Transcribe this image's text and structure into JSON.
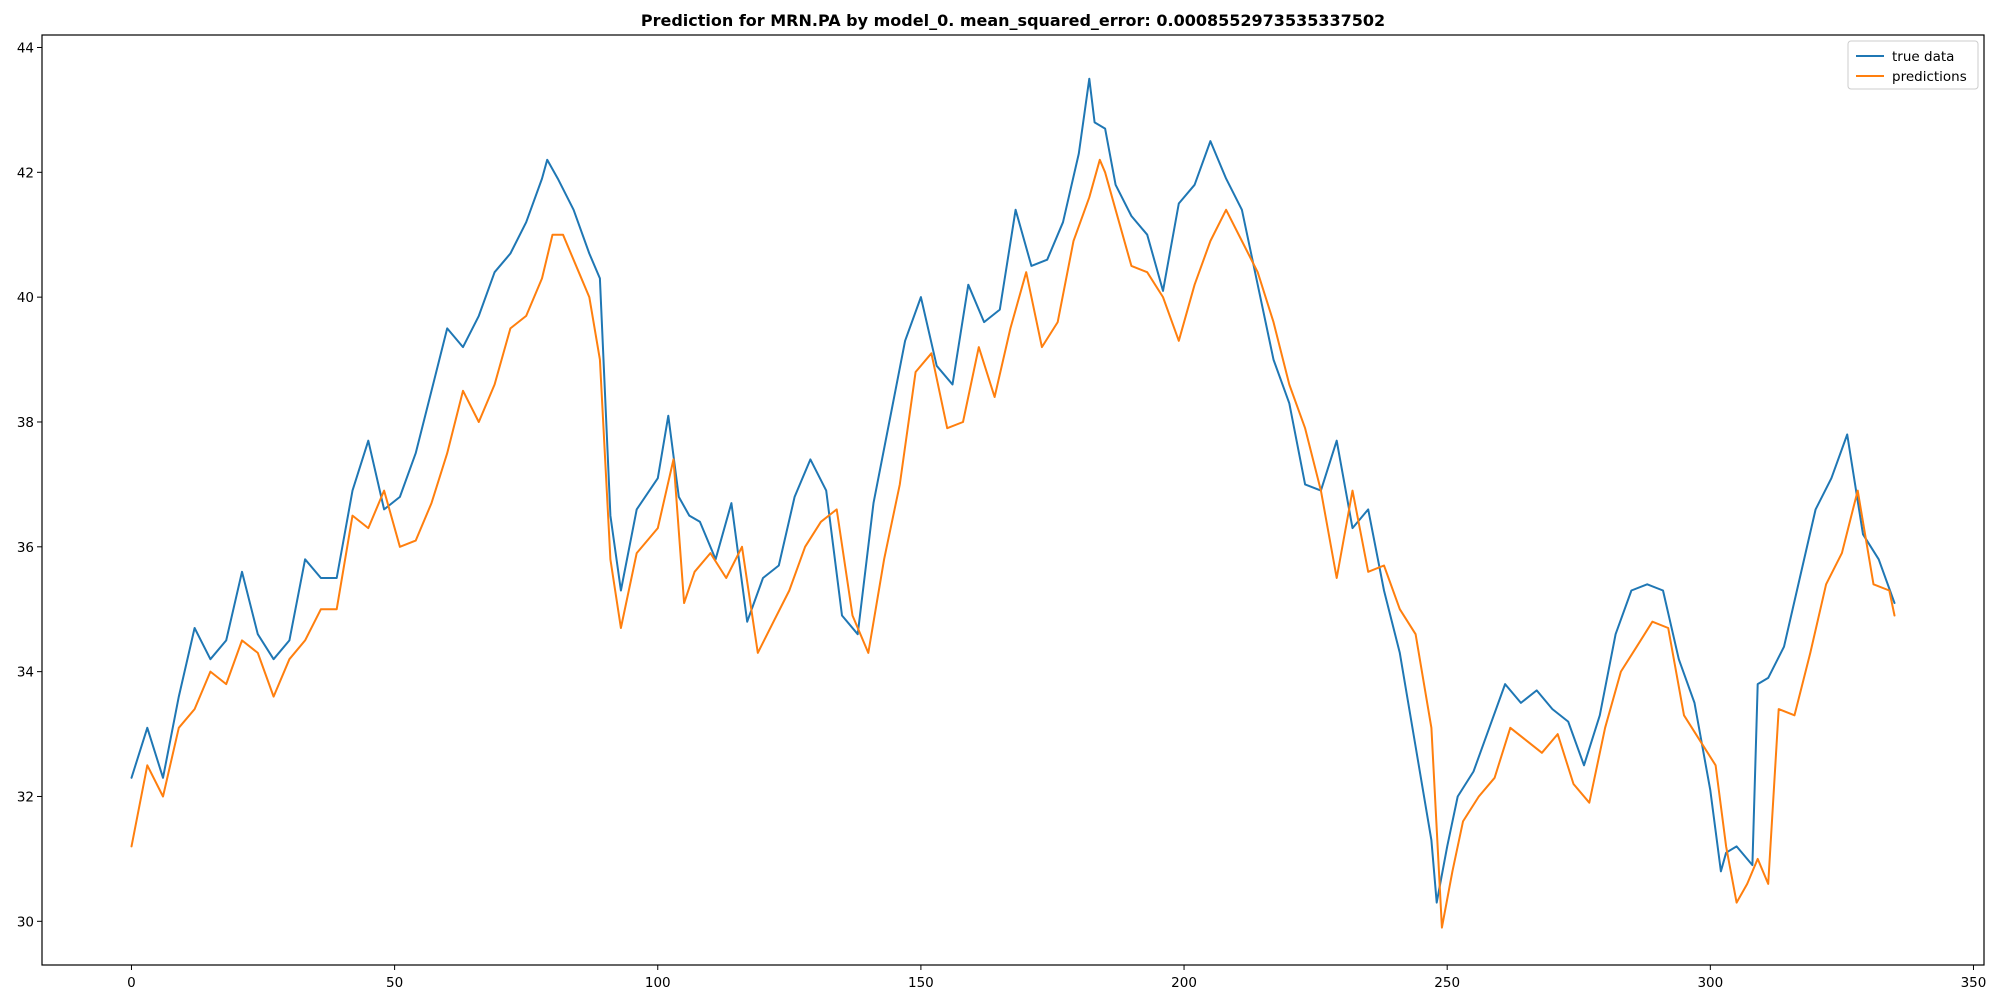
{
  "chart_data": {
    "type": "line",
    "title": "Prediction for MRN.PA by model_0. mean_squared_error: 0.0008552973535337502",
    "xlabel": "",
    "ylabel": "",
    "xlim": [
      -17,
      352
    ],
    "ylim": [
      29.3,
      44.2
    ],
    "xticks": [
      0,
      50,
      100,
      150,
      200,
      250,
      300,
      350
    ],
    "yticks": [
      30,
      32,
      34,
      36,
      38,
      40,
      42,
      44
    ],
    "grid": false,
    "legend_position": "top-right",
    "series": [
      {
        "name": "true data",
        "color": "#1f77b4",
        "x": [
          0,
          3,
          6,
          9,
          12,
          15,
          18,
          21,
          24,
          27,
          30,
          33,
          36,
          39,
          42,
          45,
          48,
          51,
          54,
          57,
          60,
          63,
          66,
          69,
          72,
          75,
          78,
          79,
          81,
          84,
          87,
          89,
          91,
          93,
          96,
          100,
          102,
          104,
          106,
          108,
          111,
          114,
          117,
          120,
          123,
          126,
          129,
          132,
          135,
          138,
          141,
          144,
          147,
          150,
          153,
          156,
          159,
          162,
          165,
          168,
          171,
          174,
          177,
          180,
          182,
          183,
          185,
          187,
          190,
          193,
          196,
          199,
          202,
          205,
          208,
          211,
          214,
          217,
          220,
          223,
          226,
          229,
          232,
          235,
          238,
          241,
          244,
          247,
          248,
          250,
          252,
          255,
          258,
          261,
          264,
          267,
          270,
          273,
          276,
          279,
          282,
          285,
          288,
          291,
          294,
          297,
          300,
          302,
          303,
          305,
          308,
          309,
          311,
          314,
          317,
          320,
          323,
          326,
          329,
          332,
          335
        ],
        "values": [
          32.3,
          33.1,
          32.3,
          33.6,
          34.7,
          34.2,
          34.5,
          35.6,
          34.6,
          34.2,
          34.5,
          35.8,
          35.5,
          35.5,
          36.9,
          37.7,
          36.6,
          36.8,
          37.5,
          38.5,
          39.5,
          39.2,
          39.7,
          40.4,
          40.7,
          41.2,
          41.9,
          42.2,
          41.9,
          41.4,
          40.7,
          40.3,
          36.5,
          35.3,
          36.6,
          37.1,
          38.1,
          36.8,
          36.5,
          36.4,
          35.8,
          36.7,
          34.8,
          35.5,
          35.7,
          36.8,
          37.4,
          36.9,
          34.9,
          34.6,
          36.7,
          38.0,
          39.3,
          40.0,
          38.9,
          38.6,
          40.2,
          39.6,
          39.8,
          41.4,
          40.5,
          40.6,
          41.2,
          42.3,
          43.5,
          42.8,
          42.7,
          41.8,
          41.3,
          41.0,
          40.1,
          41.5,
          41.8,
          42.5,
          41.9,
          41.4,
          40.2,
          39.0,
          38.3,
          37.0,
          36.9,
          37.7,
          36.3,
          36.6,
          35.3,
          34.3,
          32.8,
          31.3,
          30.3,
          31.2,
          32.0,
          32.4,
          33.1,
          33.8,
          33.5,
          33.7,
          33.4,
          33.2,
          32.5,
          33.3,
          34.6,
          35.3,
          35.4,
          35.3,
          34.2,
          33.5,
          32.1,
          30.8,
          31.1,
          31.2,
          30.9,
          33.8,
          33.9,
          34.4,
          35.5,
          36.6,
          37.1,
          37.8,
          36.2,
          35.8,
          35.1
        ],
        "line_width": 2
      },
      {
        "name": "predictions",
        "color": "#ff7f0e",
        "x": [
          0,
          3,
          6,
          9,
          12,
          15,
          18,
          21,
          24,
          27,
          30,
          33,
          36,
          39,
          42,
          45,
          48,
          51,
          54,
          57,
          60,
          63,
          66,
          69,
          72,
          75,
          78,
          80,
          82,
          85,
          87,
          89,
          91,
          93,
          96,
          100,
          103,
          105,
          107,
          110,
          113,
          116,
          119,
          122,
          125,
          128,
          131,
          134,
          137,
          140,
          143,
          146,
          149,
          152,
          155,
          158,
          161,
          164,
          167,
          170,
          173,
          176,
          179,
          182,
          184,
          185,
          187,
          190,
          193,
          196,
          199,
          202,
          205,
          208,
          211,
          214,
          217,
          220,
          223,
          226,
          229,
          232,
          235,
          238,
          241,
          244,
          247,
          249,
          251,
          253,
          256,
          259,
          262,
          265,
          268,
          271,
          274,
          277,
          280,
          283,
          286,
          289,
          292,
          295,
          298,
          301,
          303,
          305,
          307,
          309,
          311,
          313,
          316,
          319,
          322,
          325,
          328,
          331,
          334,
          335
        ],
        "values": [
          31.2,
          32.5,
          32.0,
          33.1,
          33.4,
          34.0,
          33.8,
          34.5,
          34.3,
          33.6,
          34.2,
          34.5,
          35.0,
          35.0,
          36.5,
          36.3,
          36.9,
          36.0,
          36.1,
          36.7,
          37.5,
          38.5,
          38.0,
          38.6,
          39.5,
          39.7,
          40.3,
          41.0,
          41.0,
          40.4,
          40.0,
          39.0,
          35.8,
          34.7,
          35.9,
          36.3,
          37.4,
          35.1,
          35.6,
          35.9,
          35.5,
          36.0,
          34.3,
          34.8,
          35.3,
          36.0,
          36.4,
          36.6,
          34.9,
          34.3,
          35.8,
          37.0,
          38.8,
          39.1,
          37.9,
          38.0,
          39.2,
          38.4,
          39.5,
          40.4,
          39.2,
          39.6,
          40.9,
          41.6,
          42.2,
          42.0,
          41.4,
          40.5,
          40.4,
          40.0,
          39.3,
          40.2,
          40.9,
          41.4,
          40.9,
          40.4,
          39.6,
          38.6,
          37.9,
          36.9,
          35.5,
          36.9,
          35.6,
          35.7,
          35.0,
          34.6,
          33.1,
          29.9,
          30.8,
          31.6,
          32.0,
          32.3,
          33.1,
          32.9,
          32.7,
          33.0,
          32.2,
          31.9,
          33.1,
          34.0,
          34.4,
          34.8,
          34.7,
          33.3,
          32.9,
          32.5,
          31.2,
          30.3,
          30.6,
          31.0,
          30.6,
          33.4,
          33.3,
          34.3,
          35.4,
          35.9,
          36.9,
          35.4,
          35.3,
          34.9
        ],
        "line_width": 2
      }
    ]
  }
}
